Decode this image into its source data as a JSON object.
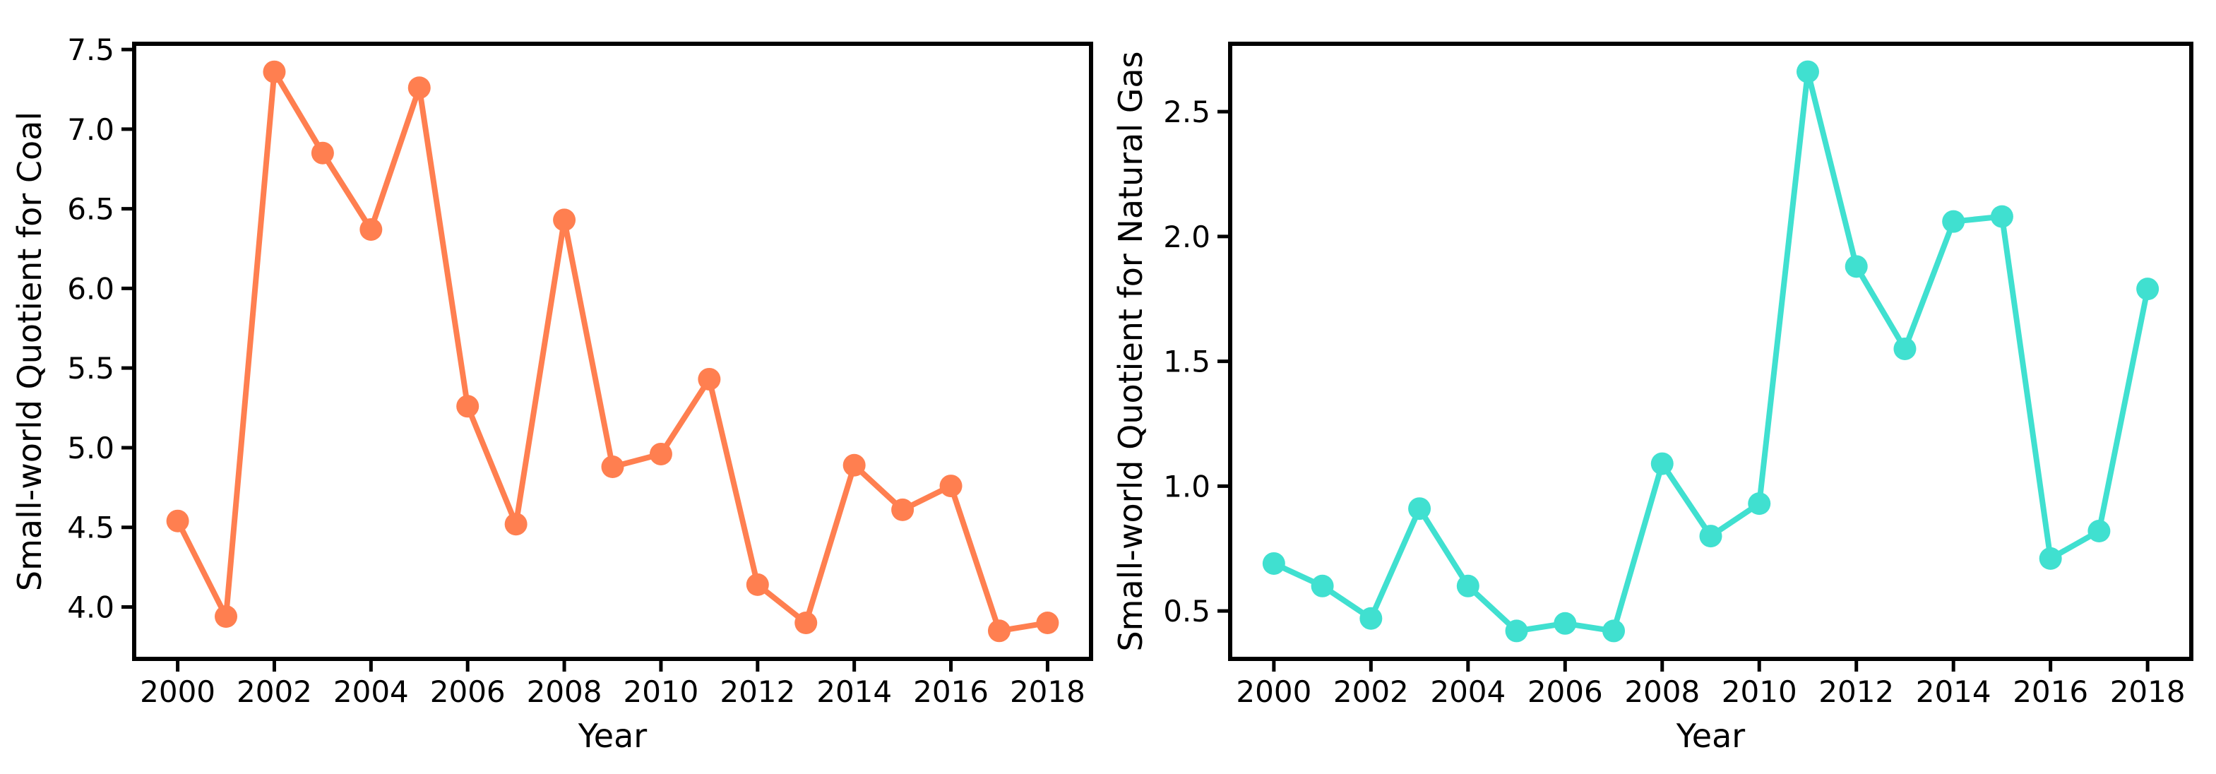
{
  "figure": {
    "background": "#ffffff",
    "text_color": "#000000"
  },
  "chart_data": [
    {
      "type": "line",
      "panel": "left",
      "title": "",
      "xlabel": "Year",
      "ylabel": "Small-world Quotient for Coal",
      "color": "#FF7F50",
      "marker": "circle",
      "grid": false,
      "legend_position": "none",
      "x": [
        2000,
        2001,
        2002,
        2003,
        2004,
        2005,
        2006,
        2007,
        2008,
        2009,
        2010,
        2011,
        2012,
        2013,
        2014,
        2015,
        2016,
        2017,
        2018
      ],
      "y": [
        4.54,
        3.94,
        7.36,
        6.85,
        6.37,
        7.26,
        5.26,
        4.52,
        6.43,
        4.88,
        4.96,
        5.43,
        4.14,
        3.9,
        4.89,
        4.61,
        4.76,
        3.85,
        3.9
      ],
      "xlim": [
        1999.1,
        2018.9
      ],
      "ylim": [
        3.674,
        7.536
      ],
      "xtick_labels": [
        "2000",
        "2002",
        "2004",
        "2006",
        "2008",
        "2010",
        "2012",
        "2014",
        "2016",
        "2018"
      ],
      "ytick_labels": [
        "4.0",
        "4.5",
        "5.0",
        "5.5",
        "6.0",
        "6.5",
        "7.0",
        "7.5"
      ]
    },
    {
      "type": "line",
      "panel": "right",
      "title": "",
      "xlabel": "Year",
      "ylabel": "Small-world Quotient for Natural Gas",
      "color": "#40E0D0",
      "marker": "circle",
      "grid": false,
      "legend_position": "none",
      "x": [
        2000,
        2001,
        2002,
        2003,
        2004,
        2005,
        2006,
        2007,
        2008,
        2009,
        2010,
        2011,
        2012,
        2013,
        2014,
        2015,
        2016,
        2017,
        2018
      ],
      "y": [
        0.69,
        0.6,
        0.47,
        0.91,
        0.6,
        0.42,
        0.45,
        0.42,
        1.09,
        0.8,
        0.93,
        2.66,
        1.88,
        1.55,
        2.06,
        2.08,
        0.71,
        0.82,
        1.79
      ],
      "xlim": [
        1999.1,
        2018.9
      ],
      "ylim": [
        0.308,
        2.772
      ],
      "xtick_labels": [
        "2000",
        "2002",
        "2004",
        "2006",
        "2008",
        "2010",
        "2012",
        "2014",
        "2016",
        "2018"
      ],
      "ytick_labels": [
        "0.5",
        "1.0",
        "1.5",
        "2.0",
        "2.5"
      ]
    }
  ]
}
